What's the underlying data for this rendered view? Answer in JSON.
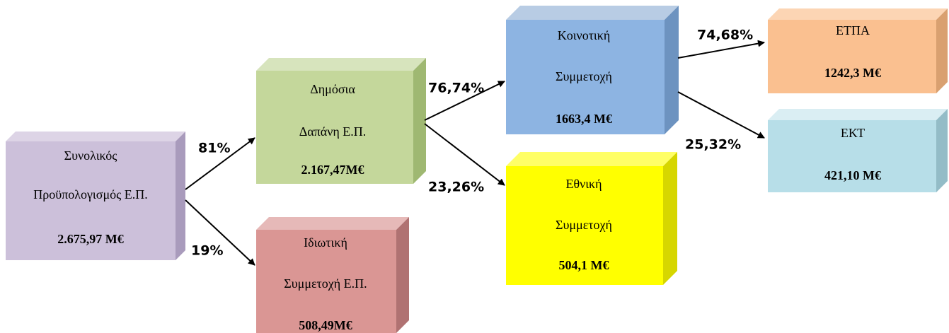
{
  "nodes": [
    {
      "lines": [
        "Συνολικός",
        "Προϋπολογισμός  Ε.Π.",
        "2.675,97 Μ€"
      ]
    },
    {
      "lines": [
        "Δημόσια",
        "Δαπάνη Ε.Π.",
        "2.167,47Μ€"
      ]
    },
    {
      "lines": [
        "Ιδιωτική",
        "Συμμετοχή Ε.Π.",
        "508,49Μ€"
      ]
    },
    {
      "lines": [
        "Κοινοτική",
        "Συμμετοχή",
        "1663,4 Μ€"
      ]
    },
    {
      "lines": [
        "Εθνική",
        "Συμμετοχή",
        "504,1 Μ€"
      ]
    },
    {
      "lines": [
        "ΕΤΠΑ",
        "1242,3 Μ€"
      ]
    },
    {
      "lines": [
        "ΕΚΤ",
        "421,10 Μ€"
      ]
    }
  ],
  "edges": [
    {
      "label": "81%"
    },
    {
      "label": "19%"
    },
    {
      "label": "76,74%"
    },
    {
      "label": "23,26%"
    },
    {
      "label": "74,68%"
    },
    {
      "label": "25,32%"
    }
  ]
}
